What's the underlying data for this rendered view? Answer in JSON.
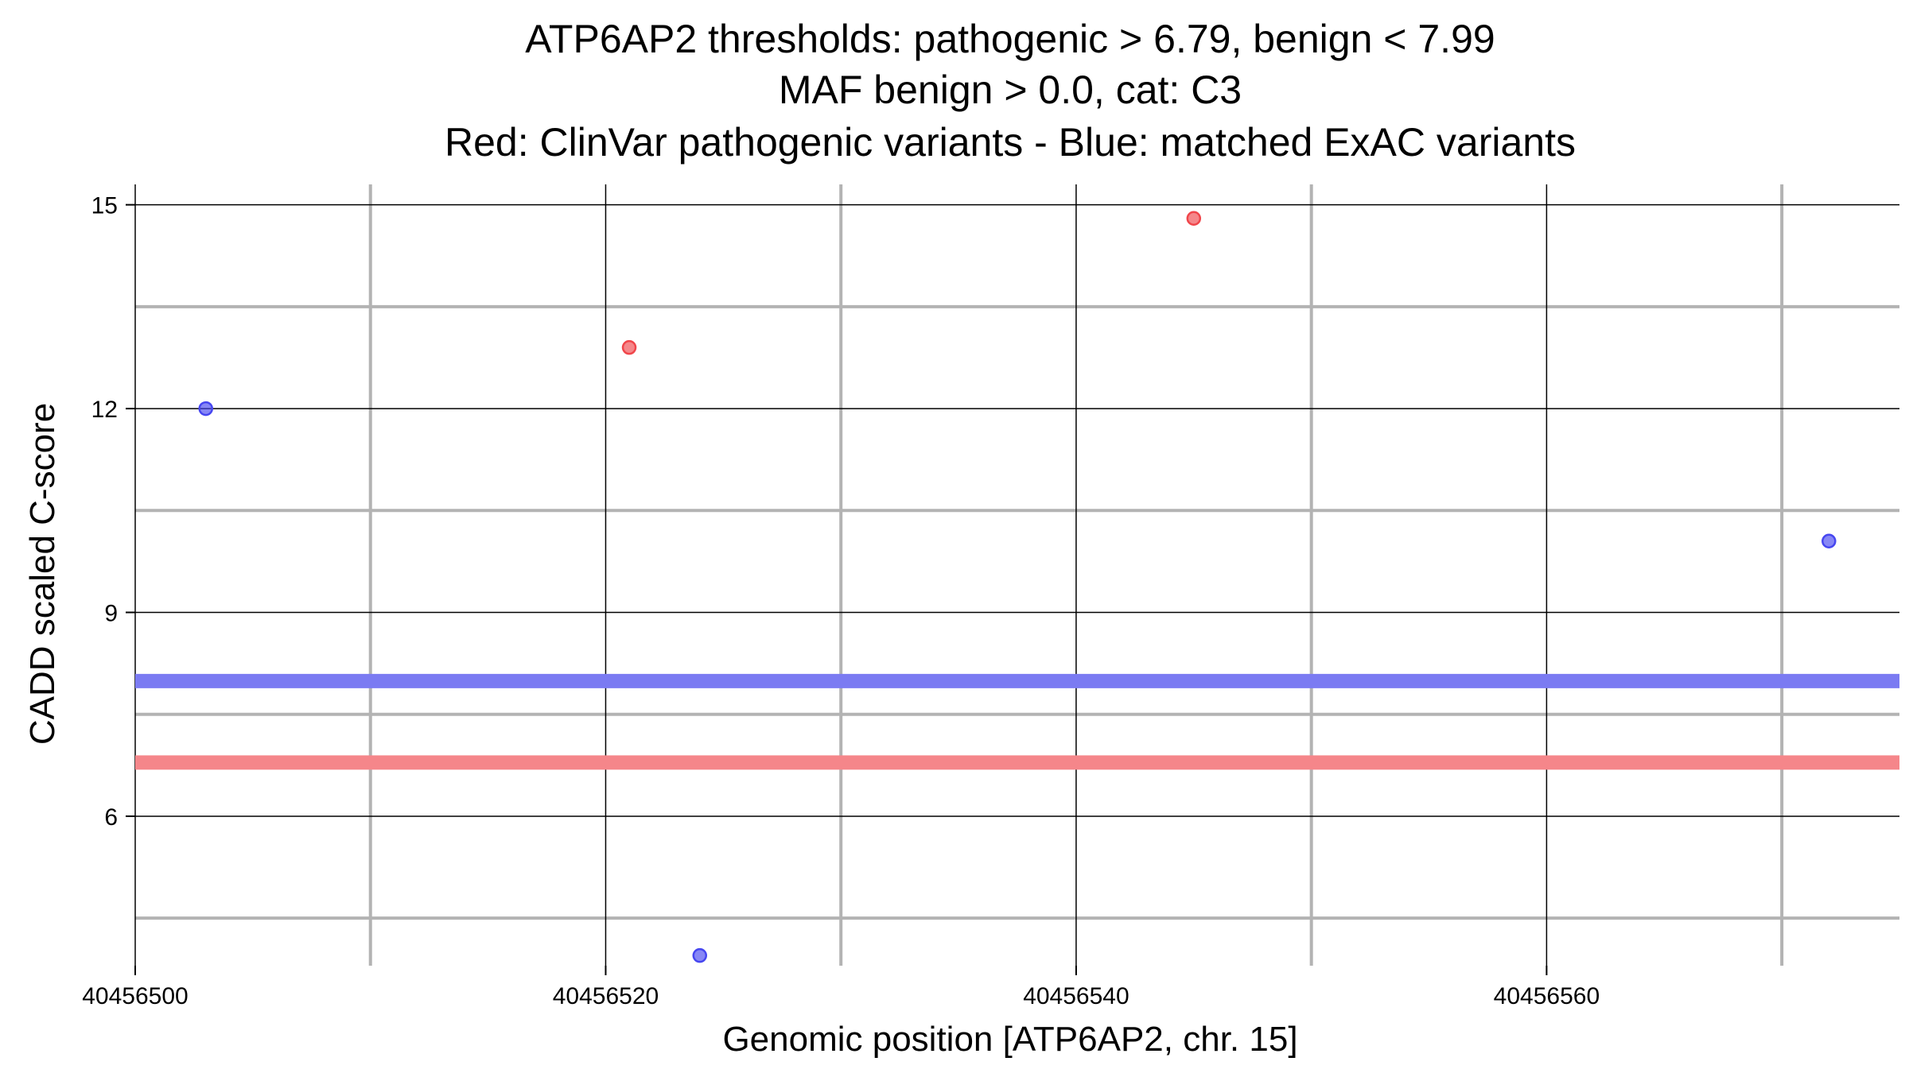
{
  "chart_data": {
    "type": "scatter",
    "title_lines": [
      "ATP6AP2 thresholds: pathogenic > 6.79, benign < 7.99",
      "MAF benign > 0.0, cat: C3",
      "Red: ClinVar pathogenic variants - Blue: matched ExAC variants"
    ],
    "xlabel": "Genomic position [ATP6AP2, chr. 15]",
    "ylabel": "CADD scaled C-score",
    "xlim": [
      40456500,
      40456575
    ],
    "ylim": [
      3.8,
      15.3
    ],
    "x_ticks": [
      40456500,
      40456520,
      40456540,
      40456560
    ],
    "x_tick_labels": [
      "40456500",
      "40456520",
      "40456540",
      "40456560"
    ],
    "x_minor": [
      40456510,
      40456530,
      40456550,
      40456570
    ],
    "y_ticks": [
      6,
      9,
      12,
      15
    ],
    "y_tick_labels": [
      "6",
      "9",
      "12",
      "15"
    ],
    "y_minor": [
      4.5,
      7.5,
      10.5,
      13.5
    ],
    "grid": true,
    "series": [
      {
        "color": "#f0464b",
        "points": [
          {
            "x": 40456521,
            "y": 12.9
          },
          {
            "x": 40456545,
            "y": 14.8
          }
        ]
      },
      {
        "color": "#4646f0",
        "points": [
          {
            "x": 40456503,
            "y": 12.0
          },
          {
            "x": 40456524,
            "y": 3.95
          },
          {
            "x": 40456572,
            "y": 10.05
          }
        ]
      }
    ],
    "hlines": [
      {
        "y": 7.99,
        "color": "#7b7bf2"
      },
      {
        "y": 6.79,
        "color": "#f5868a"
      }
    ]
  }
}
